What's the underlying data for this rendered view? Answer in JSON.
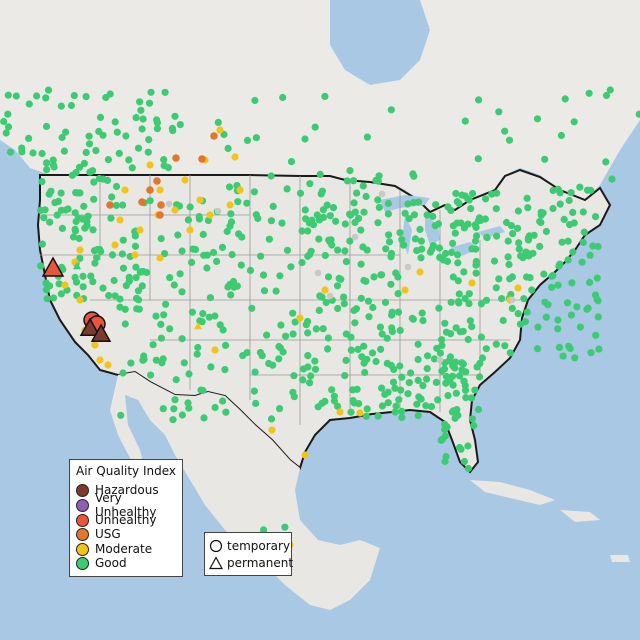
{
  "legend": {
    "title": "Air Quality Index",
    "categories": [
      {
        "label": "Hazardous",
        "color": "#7e3a2c"
      },
      {
        "label": "Very Unhealthy",
        "color": "#8e5fb4"
      },
      {
        "label": "Unhealthy",
        "color": "#e8563a"
      },
      {
        "label": "USG",
        "color": "#e0772a"
      },
      {
        "label": "Moderate",
        "color": "#f0c419"
      },
      {
        "label": "Good",
        "color": "#3ccb72"
      }
    ],
    "no_data_color": "#c8c8c8"
  },
  "shape_legend": {
    "temporary_label": "temporary",
    "permanent_label": "permanent"
  },
  "colors": {
    "water": "#a8c8e4",
    "land": "#e9e7e3",
    "border": "#1a1a1a",
    "state_line": "#999999"
  }
}
